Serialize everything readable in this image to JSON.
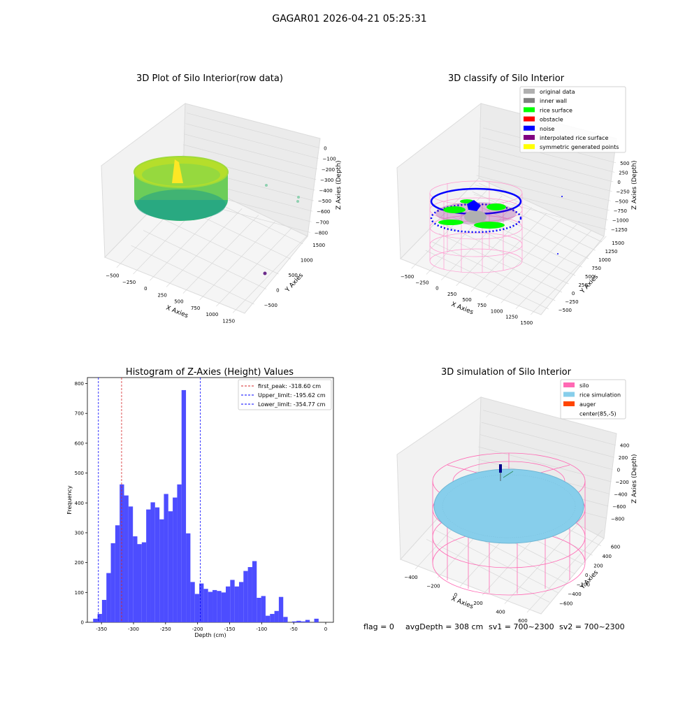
{
  "suptitle": "GAGAR01 2026-04-21 05:25:31",
  "footer": {
    "flag": "flag = 0",
    "avg_depth": "avgDepth = 308 cm",
    "sv1": "sv1 = 700~2300",
    "sv2": "sv2 = 700~2300"
  },
  "colors": {
    "histogram_bar": "#4d4dff",
    "peak_line": "#d62728",
    "limit_line": "#0000ff",
    "silo": "#ff69b4",
    "rice_simulation": "#87ceeb",
    "auger": "#ff4500",
    "original_data": "#b0b0b0",
    "inner_wall": "#808080",
    "rice_surface": "#00ff00",
    "obstacle": "#ff0000",
    "noise": "#0000ff",
    "interpolated_rice_surface": "#800080",
    "symmetric_generated_points": "#ffff00"
  },
  "chart_data": [
    {
      "type": "scatter",
      "title": "3D Plot of Silo Interior(row data)",
      "xlabel": "X Axies",
      "ylabel": "Y Axies",
      "zlabel": "Z Axies (Depth)",
      "x_ticks": [
        "−500",
        "−250",
        "0",
        "250",
        "500",
        "750",
        "1000",
        "1250"
      ],
      "y_ticks": [
        "−500",
        "0",
        "500",
        "1000",
        "1500"
      ],
      "z_ticks": [
        "0",
        "−100",
        "−200",
        "−300",
        "−400",
        "−500",
        "−600",
        "−700",
        "−800"
      ],
      "colormap": "viridis",
      "outliers": [
        {
          "label": "outlier-1",
          "color": "#8fd0b0"
        },
        {
          "label": "outlier-2",
          "color": "#8fd0b0"
        },
        {
          "label": "outlier-3",
          "color": "#8fd0b0"
        },
        {
          "label": "outlier-4",
          "color": "#6b2a8a"
        }
      ]
    },
    {
      "type": "scatter",
      "title": "3D classify of Silo Interior",
      "xlabel": "X Axies",
      "ylabel": "Y Axies",
      "zlabel": "Z Axies (Depth)",
      "x_ticks": [
        "−500",
        "−250",
        "0",
        "250",
        "500",
        "750",
        "1000",
        "1250",
        "1500"
      ],
      "y_ticks": [
        "−500",
        "−250",
        "0",
        "250",
        "500",
        "750",
        "1000",
        "1250",
        "1500"
      ],
      "z_ticks": [
        "500",
        "250",
        "0",
        "−250",
        "−500",
        "−750",
        "−1000",
        "−1250"
      ],
      "legend": [
        {
          "label": "original data",
          "color": "#b0b0b0"
        },
        {
          "label": "inner wall",
          "color": "#808080"
        },
        {
          "label": "rice surface",
          "color": "#00ff00"
        },
        {
          "label": "obstacle",
          "color": "#ff0000"
        },
        {
          "label": "noise",
          "color": "#0000ff"
        },
        {
          "label": "interpolated rice surface",
          "color": "#800080"
        },
        {
          "label": "symmetric generated points",
          "color": "#ffff00"
        }
      ],
      "legend_position": "top-right"
    },
    {
      "type": "bar",
      "title": "Histogram of Z-Axies (Height) Values",
      "xlabel": "Depth (cm)",
      "ylabel": "Frequency",
      "xlim": [
        -372,
        12
      ],
      "ylim": [
        0,
        820
      ],
      "x_ticks": [
        -350,
        -300,
        -250,
        -200,
        -150,
        -100,
        -50,
        0
      ],
      "y_ticks": [
        0,
        100,
        200,
        300,
        400,
        500,
        600,
        700,
        800
      ],
      "bin_start": -363,
      "bin_width": 6.9,
      "values": [
        12,
        28,
        75,
        165,
        265,
        325,
        462,
        425,
        388,
        288,
        262,
        268,
        378,
        402,
        385,
        345,
        430,
        372,
        418,
        462,
        778,
        298,
        135,
        95,
        130,
        112,
        102,
        108,
        105,
        100,
        120,
        142,
        120,
        135,
        172,
        185,
        205,
        82,
        88,
        22,
        28,
        38,
        85,
        18,
        0,
        3,
        5,
        3,
        8,
        0,
        12
      ],
      "vlines": [
        {
          "x": -318.6,
          "label": "first_peak: -318.60 cm",
          "color": "#d62728"
        },
        {
          "x": -195.62,
          "label": "Upper_limit: -195.62 cm",
          "color": "#0000ff"
        },
        {
          "x": -354.77,
          "label": "Lower_limit: -354.77 cm",
          "color": "#0000ff"
        }
      ],
      "legend_position": "top-right"
    },
    {
      "type": "scatter",
      "title": "3D simulation of Silo Interior",
      "xlabel": "X Axies",
      "ylabel": "Y Axies",
      "zlabel": "Z Axies (Depth)",
      "x_ticks": [
        "−400",
        "−200",
        "0",
        "200",
        "400",
        "600"
      ],
      "y_ticks": [
        "−600",
        "−400",
        "−200",
        "0",
        "200",
        "400",
        "600"
      ],
      "z_ticks": [
        "400",
        "200",
        "0",
        "−200",
        "−400",
        "−600",
        "−800"
      ],
      "legend": [
        {
          "label": "silo",
          "color": "#ff69b4"
        },
        {
          "label": "rice simulation",
          "color": "#87ceeb"
        },
        {
          "label": "auger",
          "color": "#ff4500"
        },
        {
          "label": "center(85,-5)",
          "color": ""
        }
      ],
      "legend_position": "top-right"
    }
  ]
}
